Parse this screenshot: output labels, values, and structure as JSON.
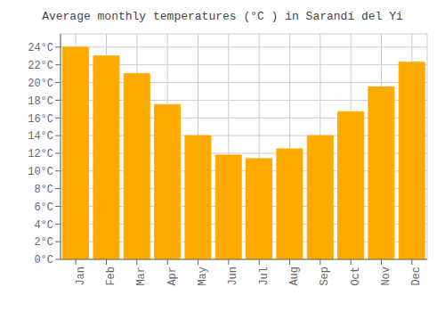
{
  "chart_data": {
    "type": "bar",
    "title": "Average monthly temperatures (°C ) in Sarandí del Yi",
    "categories": [
      "Jan",
      "Feb",
      "Mar",
      "Apr",
      "May",
      "Jun",
      "Jul",
      "Aug",
      "Sep",
      "Oct",
      "Nov",
      "Dec"
    ],
    "values": [
      24.0,
      23.0,
      21.0,
      17.5,
      14.0,
      11.8,
      11.4,
      12.5,
      14.0,
      16.7,
      19.5,
      22.3
    ],
    "color": "#FFAA00",
    "ylim": [
      0,
      25.5
    ],
    "yticks": [
      {
        "value": 0,
        "label": "0°C"
      },
      {
        "value": 2,
        "label": "2°C"
      },
      {
        "value": 4,
        "label": "4°C"
      },
      {
        "value": 6,
        "label": "6°C"
      },
      {
        "value": 8,
        "label": "8°C"
      },
      {
        "value": 10,
        "label": "10°C"
      },
      {
        "value": 12,
        "label": "12°C"
      },
      {
        "value": 14,
        "label": "14°C"
      },
      {
        "value": 16,
        "label": "16°C"
      },
      {
        "value": 18,
        "label": "18°C"
      },
      {
        "value": 20,
        "label": "20°C"
      },
      {
        "value": 22,
        "label": "22°C"
      },
      {
        "value": 24,
        "label": "24°C"
      }
    ],
    "grid": true
  }
}
